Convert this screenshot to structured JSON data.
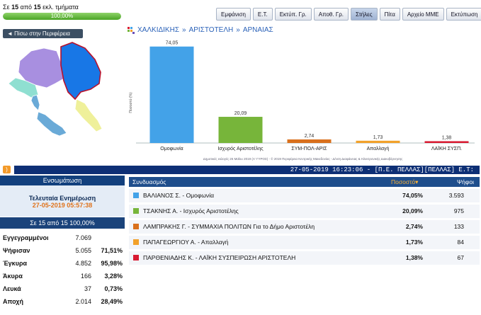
{
  "progress": {
    "prefix": "Σε",
    "done": "15",
    "mid": "από",
    "total": "15",
    "suffix": "εκλ. τμήματα",
    "percent_label": "100,00%",
    "fraction": 1.0
  },
  "toolbar": [
    {
      "label": "Εμφάνιση",
      "active": false
    },
    {
      "label": "Ε.Τ.",
      "active": false
    },
    {
      "label": "Εκτύπ. Γρ.",
      "active": false
    },
    {
      "label": "Αποθ. Γρ.",
      "active": false
    },
    {
      "label": "Στήλες",
      "active": true
    },
    {
      "label": "Πίτα",
      "active": false
    },
    {
      "label": "Αρχείο ΜΜΕ",
      "active": false
    },
    {
      "label": "Εκτύπωση",
      "active": false
    }
  ],
  "back_button": "◄ Πίσω στην Περιφέρεια",
  "breadcrumb": [
    "ΧΑΛΚΙΔΙΚΗΣ",
    "ΑΡΙΣΤΟΤΕΛΗ",
    "ΑΡΝΑΙΑΣ"
  ],
  "breadcrumb_sep": "»",
  "map": {
    "colors": {
      "north": "#1877e6",
      "west": "#a88fe0",
      "southwest": "#8fdfd1",
      "south": "#6aaad7",
      "east": "#eff09a",
      "border": "#b8112c"
    }
  },
  "chart_data": {
    "type": "bar",
    "categories": [
      "Ομοφωνία",
      "Ισχυρός Αριστοτέλης",
      "ΣΥΜ-ΠΟΛ-ΑΡΙΣ",
      "Απαλλαγή",
      "ΛΑΪΚΗ ΣΥΣΠ."
    ],
    "values": [
      74.05,
      20.09,
      2.74,
      1.73,
      1.38
    ],
    "value_labels": [
      "74,05",
      "20,09",
      "2,74",
      "1,73",
      "1,38"
    ],
    "colors": [
      "#43a2e8",
      "#77b53a",
      "#d9701c",
      "#f2a12a",
      "#d81b32"
    ],
    "ylabel": "Ποσοστό (%)",
    "ylim": [
      0,
      75
    ]
  },
  "footnote": "Δημοτικές εκλογές 26 Μαΐου 2019 (Α' ΓΥΡΟΣ) - © 2019 Περιφέρεια Κεντρικής Μακεδονίας - Δ/νση Διαφάνειας & Ηλεκτρονικής Διακυβέρνησης",
  "rss_icon": "rss-icon",
  "ticker": "27-05-2019 16:23:06 - [Π.Ε. ΠΕΛΛΑΣ][ΠΕΛΛΑΣ] Ε.Τ:",
  "left_panel": {
    "title": "Ενσωμάτωση",
    "update_title": "Τελευταία Ενημέρωση",
    "update_time": "27-05-2019 05:57:38",
    "count": "Σε 15 από 15   100,00%",
    "stats": [
      {
        "label": "Εγγεγραμμένοι",
        "value": "7.069",
        "pct": ""
      },
      {
        "label": "Ψήφισαν",
        "value": "5.055",
        "pct": "71,51%"
      },
      {
        "label": "Έγκυρα",
        "value": "4.852",
        "pct": "95,98%"
      },
      {
        "label": "Άκυρα",
        "value": "166",
        "pct": "3,28%"
      },
      {
        "label": "Λευκά",
        "value": "37",
        "pct": "0,73%"
      },
      {
        "label": "Αποχή",
        "value": "2.014",
        "pct": "28,49%"
      }
    ]
  },
  "results": {
    "header": {
      "combination": "Συνδυασμός",
      "percent": "Ποσοστό▾",
      "votes": "Ψήφοι"
    },
    "rows": [
      {
        "name": "ΒΑΛΙΑΝΟΣ Σ. - Ομοφωνία",
        "pct": "74,05%",
        "votes": "3.593",
        "color": "#43a2e8"
      },
      {
        "name": "ΤΣΑΚΝΗΣ Α. - Ισχυρός Αριστοτέλης",
        "pct": "20,09%",
        "votes": "975",
        "color": "#77b53a"
      },
      {
        "name": "ΛΑΜΠΡΑΚΗΣ Γ. - ΣΥΜΜΑΧΙΑ ΠΟΛΙΤΩΝ Για το Δήμο Αριστοτέλη",
        "pct": "2,74%",
        "votes": "133",
        "color": "#d9701c"
      },
      {
        "name": "ΠΑΠΑΓΕΩΡΓΙΟΥ Α. - Απαλλαγή",
        "pct": "1,73%",
        "votes": "84",
        "color": "#f2a12a"
      },
      {
        "name": "ΠΑΡΘΕΝΙΑΔΗΣ Κ. - ΛΑΪΚΗ ΣΥΣΠΕΙΡΩΣΗ ΑΡΙΣΤΟΤΕΛΗ",
        "pct": "1,38%",
        "votes": "67",
        "color": "#d81b32"
      }
    ]
  }
}
